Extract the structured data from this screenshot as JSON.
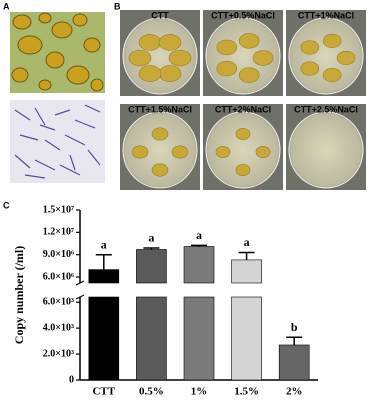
{
  "panel_labels": [
    "A",
    "B",
    "C"
  ],
  "plate_labels": [
    "CTT",
    "CTT+0.5%NaCl",
    "CTT+1%NaCl",
    "CTT+1.5%NaCl",
    "CTT+2%NaCl",
    "CTT+2.5%NaCl"
  ],
  "chart_data": {
    "type": "bar",
    "y_label": "Copy number (/ml)",
    "categories": [
      "CTT",
      "0.5%",
      "1%",
      "1.5%",
      "2%"
    ],
    "values": [
      7000000,
      9700000,
      10100000,
      8300000,
      2700
    ],
    "errors": [
      2000000,
      200000,
      150000,
      1000000,
      600
    ],
    "letters": [
      "a",
      "a",
      "a",
      "a",
      "b"
    ],
    "colors": [
      "#000000",
      "#5a5a5a",
      "#7a7a7a",
      "#d4d4d4",
      "#666666"
    ],
    "y_segments": [
      {
        "ylim": [
          0,
          6400
        ],
        "yticks": [
          0,
          {
            "value": 2000,
            "label": "2.0×10³"
          },
          {
            "value": 4000,
            "label": "4.0×10³"
          },
          {
            "value": 6000,
            "label": "6.0×10³"
          }
        ]
      },
      {
        "ylim": [
          5200000,
          15000000
        ],
        "yticks": [
          {
            "value": 6000000,
            "label": "6.0×10⁶"
          },
          {
            "value": 9000000,
            "label": "9.0×10⁶"
          },
          {
            "value": 12000000,
            "label": "1.2×10⁷"
          },
          {
            "value": 15000000,
            "label": "1.5×10⁷"
          }
        ]
      }
    ]
  }
}
